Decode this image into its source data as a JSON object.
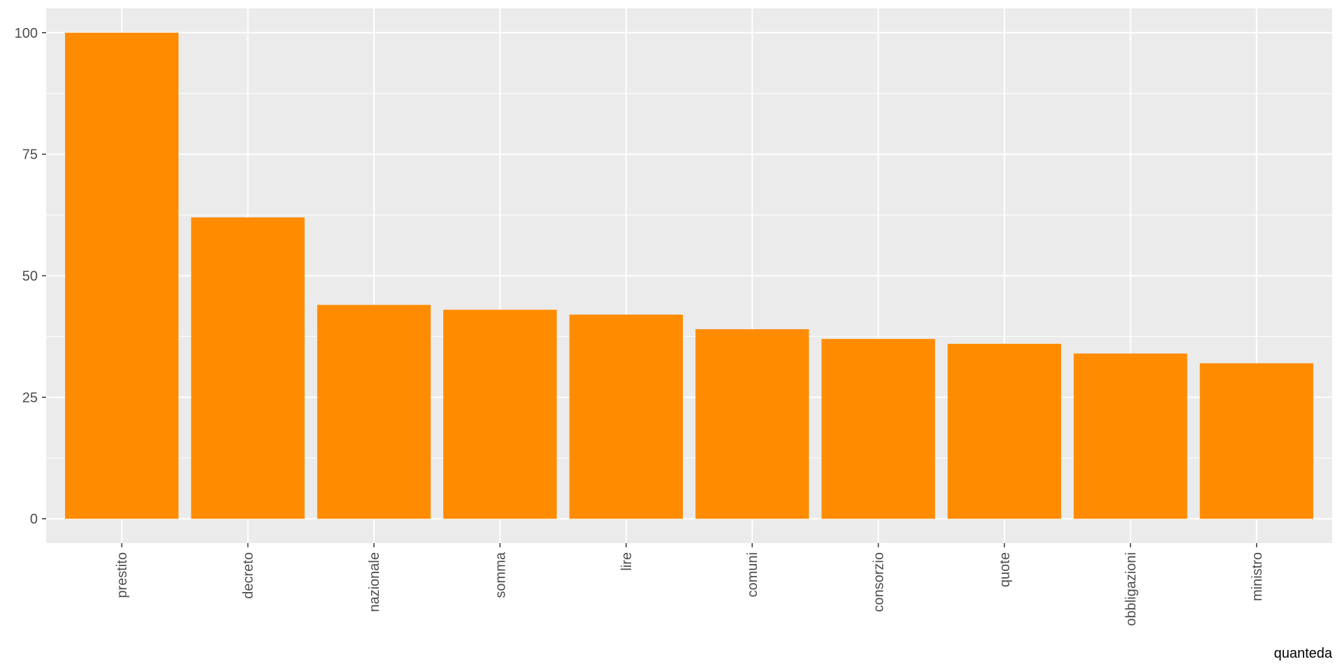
{
  "chart_data": {
    "type": "bar",
    "categories": [
      "prestito",
      "decreto",
      "nazionale",
      "somma",
      "lire",
      "comuni",
      "consorzio",
      "quote",
      "obbligazioni",
      "ministro"
    ],
    "values": [
      100,
      62,
      44,
      43,
      42,
      39,
      37,
      36,
      34,
      32
    ],
    "ylim": [
      -5,
      105
    ],
    "yticks": [
      0,
      25,
      50,
      75,
      100
    ],
    "grid": true,
    "legend": "none",
    "caption": "quanteda",
    "colors": {
      "bar": "#ff8c00",
      "panel": "#ebebeb",
      "grid": "#ffffff",
      "tick_text": "#4d4d4d",
      "caption_text": "#000000"
    }
  }
}
